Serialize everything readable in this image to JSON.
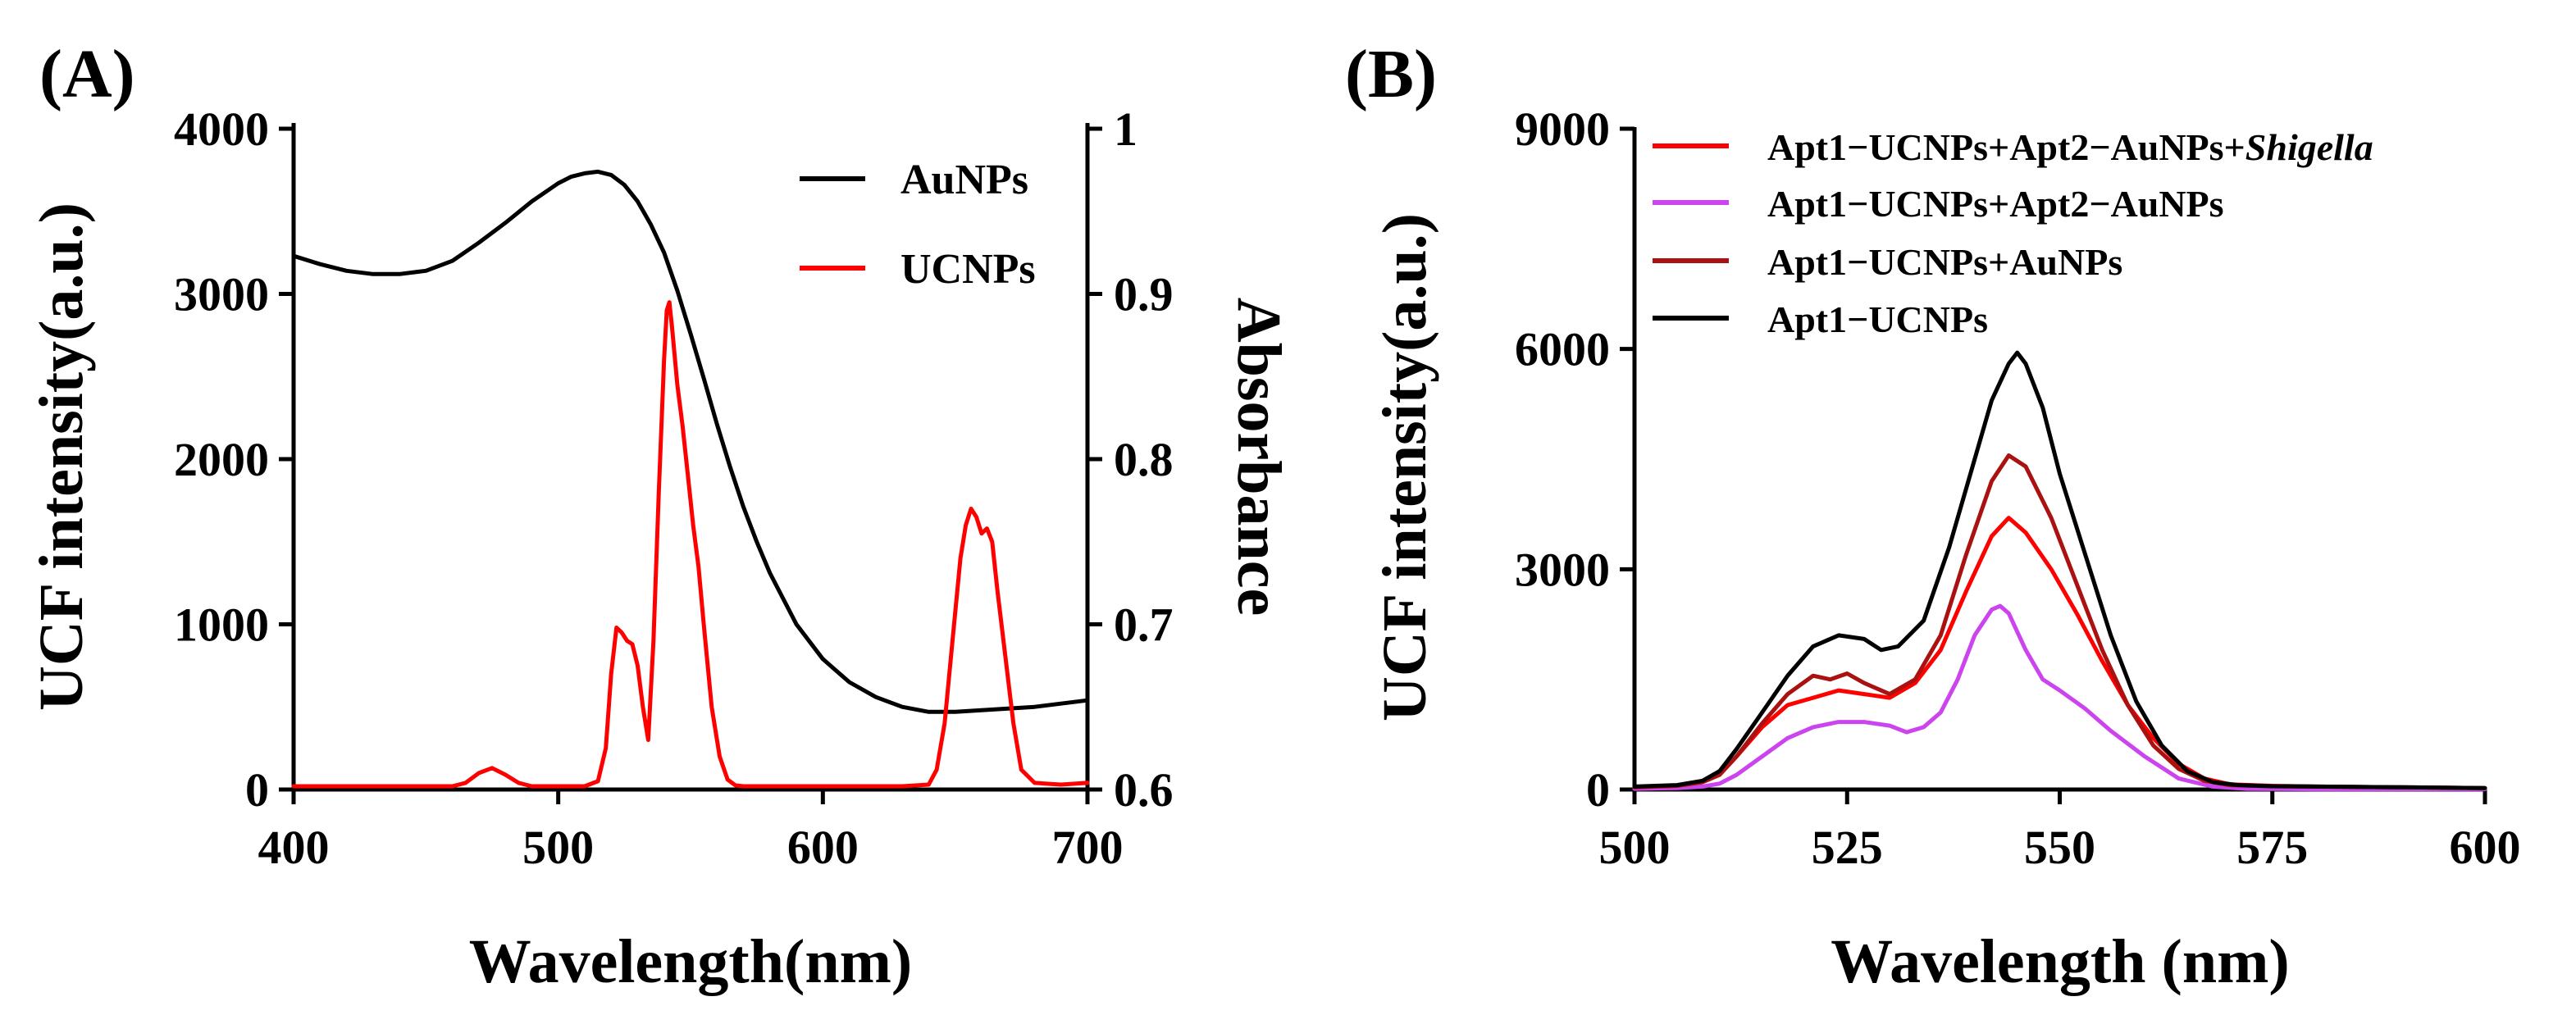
{
  "chart_data": [
    {
      "panel_label": "(A)",
      "type": "line",
      "xlabel": "Wavelength(nm)",
      "ylabel": "UCF intensity(a.u.)",
      "y2label": "Absorbance",
      "xlim": [
        400,
        700
      ],
      "ylim": [
        0,
        4000
      ],
      "y2lim": [
        0.6,
        1.0
      ],
      "xticks": [
        400,
        500,
        600,
        700
      ],
      "yticks": [
        0,
        1000,
        2000,
        3000,
        4000
      ],
      "y2ticks": [
        0.6,
        0.7,
        0.8,
        0.9,
        1.0
      ],
      "legend_position": "top-right",
      "series": [
        {
          "name": "AuNPs",
          "color": "#000000",
          "axis": "right",
          "x": [
            400,
            410,
            420,
            430,
            440,
            450,
            460,
            470,
            480,
            490,
            500,
            505,
            510,
            515,
            520,
            525,
            530,
            535,
            540,
            545,
            550,
            555,
            560,
            565,
            570,
            575,
            580,
            590,
            600,
            610,
            620,
            630,
            640,
            650,
            660,
            670,
            680,
            690,
            700
          ],
          "values": [
            0.923,
            0.918,
            0.914,
            0.912,
            0.912,
            0.914,
            0.92,
            0.931,
            0.943,
            0.956,
            0.967,
            0.971,
            0.973,
            0.974,
            0.972,
            0.966,
            0.956,
            0.942,
            0.925,
            0.902,
            0.876,
            0.849,
            0.821,
            0.795,
            0.771,
            0.75,
            0.731,
            0.7,
            0.679,
            0.665,
            0.656,
            0.65,
            0.647,
            0.647,
            0.648,
            0.649,
            0.65,
            0.652,
            0.654
          ]
        },
        {
          "name": "UCNPs",
          "color": "#ff0000",
          "axis": "left",
          "x": [
            400,
            460,
            465,
            470,
            475,
            480,
            485,
            490,
            510,
            515,
            518,
            520,
            522,
            524,
            526,
            528,
            530,
            532,
            534,
            536,
            538,
            540,
            541,
            542,
            543,
            545,
            547,
            549,
            551,
            553,
            555,
            558,
            561,
            564,
            567,
            570,
            580,
            600,
            630,
            640,
            643,
            646,
            649,
            652,
            654,
            656,
            658,
            660,
            662,
            664,
            666,
            669,
            672,
            675,
            680,
            690,
            700
          ],
          "values": [
            20,
            20,
            40,
            100,
            130,
            90,
            40,
            20,
            20,
            50,
            250,
            700,
            980,
            950,
            900,
            880,
            750,
            500,
            300,
            900,
            1800,
            2600,
            2900,
            2950,
            2800,
            2450,
            2200,
            1900,
            1600,
            1350,
            1000,
            500,
            200,
            60,
            25,
            20,
            20,
            20,
            20,
            30,
            120,
            400,
            900,
            1400,
            1600,
            1700,
            1650,
            1550,
            1580,
            1500,
            1200,
            800,
            400,
            120,
            40,
            30,
            40
          ]
        }
      ]
    },
    {
      "panel_label": "(B)",
      "type": "line",
      "xlabel": "Wavelength (nm)",
      "ylabel": "UCF intensity(a.u.)",
      "xlim": [
        500,
        600
      ],
      "ylim": [
        0,
        9000
      ],
      "xticks": [
        500,
        525,
        550,
        575,
        600
      ],
      "yticks": [
        0,
        3000,
        6000,
        9000
      ],
      "legend_position": "top-left",
      "series": [
        {
          "name_prefix": "Apt1−UCNPs+Apt2−AuNPs+",
          "name_italic": "Shigella",
          "color": "#ff0000",
          "x": [
            500,
            505,
            508,
            510,
            512,
            515,
            518,
            521,
            524,
            527,
            530,
            533,
            536,
            539,
            542,
            544,
            546,
            549,
            552,
            555,
            558,
            561,
            564,
            567,
            570,
            575,
            580,
            590,
            600
          ],
          "values": [
            30,
            50,
            100,
            200,
            450,
            850,
            1150,
            1250,
            1350,
            1300,
            1250,
            1450,
            1900,
            2700,
            3450,
            3700,
            3500,
            3000,
            2400,
            1750,
            1150,
            700,
            350,
            150,
            70,
            50,
            40,
            30,
            20
          ]
        },
        {
          "name": "Apt1−UCNPs+Apt2−AuNPs",
          "color": "#cc44ee",
          "x": [
            500,
            505,
            508,
            510,
            512,
            515,
            518,
            521,
            524,
            527,
            530,
            532,
            534,
            536,
            538,
            540,
            542,
            543,
            544,
            546,
            548,
            550,
            553,
            556,
            560,
            564,
            568,
            572,
            580,
            590,
            600
          ],
          "values": [
            10,
            20,
            40,
            80,
            200,
            450,
            700,
            850,
            920,
            920,
            870,
            780,
            850,
            1050,
            1500,
            2100,
            2450,
            2500,
            2400,
            1900,
            1500,
            1350,
            1100,
            800,
            450,
            150,
            40,
            10,
            5,
            5,
            5
          ]
        },
        {
          "name": "Apt1−UCNPs+AuNPs",
          "color": "#aa1111",
          "x": [
            500,
            505,
            508,
            510,
            512,
            515,
            518,
            521,
            523,
            525,
            527,
            530,
            533,
            536,
            539,
            542,
            544,
            546,
            549,
            552,
            555,
            558,
            561,
            564,
            567,
            570,
            575,
            580,
            590,
            600
          ],
          "values": [
            30,
            50,
            100,
            200,
            450,
            900,
            1300,
            1550,
            1500,
            1580,
            1450,
            1300,
            1500,
            2100,
            3200,
            4200,
            4550,
            4400,
            3700,
            2800,
            1900,
            1150,
            600,
            280,
            120,
            60,
            45,
            40,
            30,
            20
          ]
        },
        {
          "name": "Apt1−UCNPs",
          "color": "#000000",
          "x": [
            500,
            505,
            508,
            510,
            512,
            515,
            518,
            521,
            524,
            527,
            529,
            531,
            534,
            537,
            540,
            542,
            544,
            545,
            546,
            548,
            550,
            553,
            556,
            559,
            562,
            565,
            568,
            571,
            575,
            580,
            590,
            600
          ],
          "values": [
            40,
            60,
            120,
            250,
            550,
            1050,
            1550,
            1950,
            2100,
            2050,
            1900,
            1950,
            2300,
            3300,
            4500,
            5300,
            5800,
            5950,
            5800,
            5200,
            4300,
            3200,
            2100,
            1200,
            600,
            250,
            100,
            60,
            45,
            40,
            30,
            20
          ]
        }
      ]
    }
  ]
}
